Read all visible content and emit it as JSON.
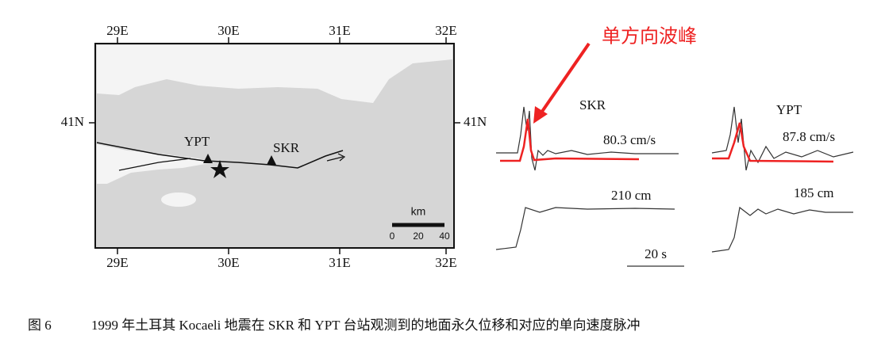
{
  "map": {
    "lon_labels_top": [
      "29E",
      "30E",
      "31E",
      "32E"
    ],
    "lon_labels_bottom": [
      "29E",
      "30E",
      "31E",
      "32E"
    ],
    "lat_label_left": "41N",
    "lat_label_right": "41N",
    "stations": [
      "YPT",
      "SKR"
    ],
    "scale": {
      "unit": "km",
      "labels": [
        "0",
        "20",
        "40"
      ]
    }
  },
  "waveforms": [
    {
      "station": "SKR",
      "velocity": "80.3 cm/s",
      "displacement": "210 cm"
    },
    {
      "station": "YPT",
      "velocity": "87.8 cm/s",
      "displacement": "185 cm"
    }
  ],
  "time_scale": "20 s",
  "annotation": "单方向波峰",
  "caption": {
    "label": "图 6",
    "text": "1999 年土耳其 Kocaeli 地震在 SKR 和 YPT 台站观测到的地面永久位移和对应的单向速度脉冲"
  }
}
